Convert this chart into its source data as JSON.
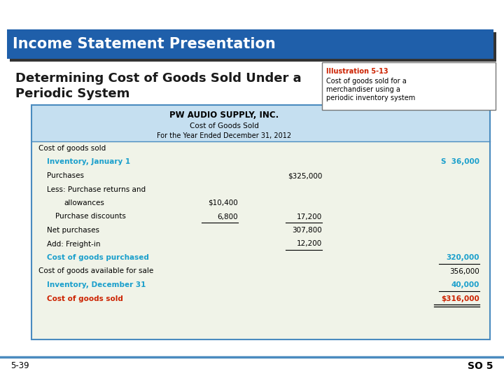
{
  "bg_color": "#ffffff",
  "header_bg": "#1f5faa",
  "header_text": "Income Statement Presentation",
  "header_text_color": "#ffffff",
  "subtitle_line1": "Determining Cost of Goods Sold Under a",
  "subtitle_line2": "Periodic System",
  "subtitle_color": "#1a1a1a",
  "illus_title": "Illustration 5-13",
  "illus_line1": "Cost of goods sold for a",
  "illus_line2": "merchandiser using a",
  "illus_line3": "periodic inventory system",
  "company_name": "PW AUDIO SUPPLY, INC.",
  "statement_title": "Cost of Goods Sold",
  "period": "For the Year Ended December 31, 2012",
  "table_header_bg": "#c5dff0",
  "table_body_bg": "#f0f3e8",
  "table_border_color": "#4a8bbf",
  "cyan_color": "#1a9fcc",
  "red_color": "#cc2200",
  "rows": [
    {
      "label": "Cost of goods sold",
      "indent": 0,
      "col1": "",
      "col2": "",
      "col3": "",
      "color": "black",
      "bold": false
    },
    {
      "label": "Inventory, January 1",
      "indent": 1,
      "col1": "",
      "col2": "",
      "col3": "S  36,000",
      "color": "cyan",
      "bold": true
    },
    {
      "label": "Purchases",
      "indent": 1,
      "col1": "",
      "col2": "$325,000",
      "col3": "",
      "color": "black",
      "bold": false
    },
    {
      "label": "Less: Purchase returns and",
      "indent": 1,
      "col1": "",
      "col2": "",
      "col3": "",
      "color": "black",
      "bold": false
    },
    {
      "label": "allowances",
      "indent": 3,
      "col1": "$10,400",
      "col2": "",
      "col3": "",
      "color": "black",
      "bold": false
    },
    {
      "label": "Purchase discounts",
      "indent": 2,
      "col1": "6,800",
      "col2": "17,200",
      "col3": "",
      "color": "black",
      "bold": false,
      "underline_col1": true,
      "underline_col2": true
    },
    {
      "label": "Net purchases",
      "indent": 1,
      "col1": "",
      "col2": "307,800",
      "col3": "",
      "color": "black",
      "bold": false
    },
    {
      "label": "Add: Freight-in",
      "indent": 1,
      "col1": "",
      "col2": "12,200",
      "col3": "",
      "color": "black",
      "bold": false,
      "underline_col2": true
    },
    {
      "label": "Cost of goods purchased",
      "indent": 1,
      "col1": "",
      "col2": "",
      "col3": "320,000",
      "color": "cyan",
      "bold": true,
      "underline_col3": true
    },
    {
      "label": "Cost of goods available for sale",
      "indent": 0,
      "col1": "",
      "col2": "",
      "col3": "356,000",
      "color": "black",
      "bold": false
    },
    {
      "label": "Inventory, December 31",
      "indent": 1,
      "col1": "",
      "col2": "",
      "col3": "40,000",
      "color": "cyan",
      "bold": true,
      "underline_col3": true
    },
    {
      "label": "Cost of goods sold",
      "indent": 1,
      "col1": "",
      "col2": "",
      "col3": "$316,000",
      "color": "red",
      "bold": true,
      "double_underline": true
    }
  ],
  "footer_left": "5-39",
  "footer_right": "SO 5"
}
